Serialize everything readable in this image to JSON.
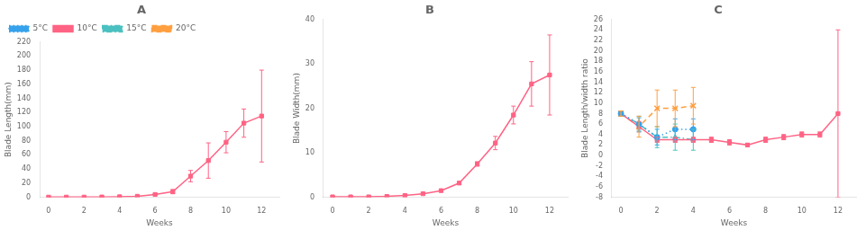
{
  "chart_data": [
    {
      "type": "line",
      "title": "A",
      "xlabel": "Weeks",
      "ylabel": "Blade Length(mm)",
      "x": [
        0,
        1,
        2,
        3,
        4,
        5,
        6,
        7,
        8,
        9,
        10,
        11,
        12
      ],
      "series": [
        {
          "name": "5°C",
          "color": "#36a2eb",
          "marker": "circle",
          "line_style": "dotted",
          "values": [
            null,
            null,
            null,
            null,
            null,
            null,
            null,
            null,
            null,
            null,
            null,
            null,
            null
          ]
        },
        {
          "name": "10°C",
          "color": "#ff6384",
          "marker": "square",
          "line_style": "solid",
          "values": [
            0.3,
            0.3,
            0.3,
            0.5,
            0.8,
            1.5,
            4.0,
            8.0,
            30.0,
            52.0,
            78.0,
            105.0,
            115.0
          ],
          "errors": [
            0.1,
            0.1,
            0.1,
            0.1,
            0.2,
            0.5,
            1.0,
            3.0,
            8.0,
            25.0,
            15.0,
            20.0,
            65.0
          ]
        },
        {
          "name": "15°C",
          "color": "#4bc0c0",
          "marker": "triangle",
          "line_style": "dashdot",
          "values": [
            null,
            null,
            null,
            null,
            null,
            null,
            null,
            null,
            null,
            null,
            null,
            null,
            null
          ]
        },
        {
          "name": "20°C",
          "color": "#ff9f40",
          "marker": "x",
          "line_style": "dashed",
          "values": [
            null,
            null,
            null,
            null,
            null,
            null,
            null,
            null,
            null,
            null,
            null,
            null,
            null
          ]
        }
      ],
      "xlim": [
        -0.5,
        13.0
      ],
      "xticks": [
        0,
        2,
        4,
        6,
        8,
        10,
        12
      ],
      "ylim": [
        0,
        220
      ],
      "yticks": [
        0,
        20,
        40,
        60,
        80,
        100,
        120,
        140,
        160,
        180,
        200,
        220
      ],
      "legend": "upper left",
      "grid": false
    },
    {
      "type": "line",
      "title": "B",
      "xlabel": "Weeks",
      "ylabel": "Blade Width(mm)",
      "x": [
        0,
        1,
        2,
        3,
        4,
        5,
        6,
        7,
        8,
        9,
        10,
        11,
        12
      ],
      "values": [
        0.1,
        0.1,
        0.1,
        0.2,
        0.4,
        0.8,
        1.5,
        3.2,
        7.5,
        12.2,
        18.5,
        25.5,
        27.5
      ],
      "errors": [
        0.0,
        0.0,
        0.0,
        0.0,
        0.0,
        0.1,
        0.2,
        0.3,
        0.5,
        1.5,
        2.0,
        5.0,
        9.0
      ],
      "color": "#ff6384",
      "marker": "square",
      "line_style": "solid",
      "xlim": [
        -0.5,
        13.0
      ],
      "xticks": [
        0,
        2,
        4,
        6,
        8,
        10,
        12
      ],
      "ylim": [
        0,
        40
      ],
      "yticks": [
        0,
        10,
        20,
        30,
        40
      ],
      "grid": false
    },
    {
      "type": "line",
      "title": "C",
      "xlabel": "Weeks",
      "ylabel": "Blade Length/width ratio",
      "x": [
        0,
        1,
        2,
        3,
        4,
        5,
        6,
        7,
        8,
        9,
        10,
        11,
        12
      ],
      "series": [
        {
          "color": "#36a2eb",
          "marker": "circle",
          "line_style": "dotted",
          "values": [
            8.0,
            6.0,
            3.5,
            5.0,
            5.0,
            null,
            null,
            null,
            null,
            null,
            null,
            null,
            null
          ],
          "errors": [
            0.5,
            1.2,
            1.5,
            2.0,
            2.0,
            null,
            null,
            null,
            null,
            null,
            null,
            null,
            null
          ]
        },
        {
          "color": "#ff6384",
          "marker": "square",
          "line_style": "solid",
          "values": [
            8.0,
            5.5,
            3.0,
            3.0,
            3.0,
            3.0,
            2.5,
            2.0,
            3.0,
            3.5,
            4.0,
            4.0,
            8.0
          ],
          "errors": [
            0.5,
            1.0,
            0.5,
            0.5,
            0.5,
            0.5,
            0.5,
            0.3,
            0.5,
            0.5,
            0.5,
            0.5,
            16.0
          ]
        },
        {
          "color": "#4bc0c0",
          "marker": "triangle",
          "line_style": "dashdot",
          "values": [
            8.0,
            6.0,
            3.5,
            3.5,
            3.0,
            null,
            null,
            null,
            null,
            null,
            null,
            null,
            null
          ],
          "errors": [
            0.5,
            1.5,
            2.0,
            2.5,
            2.0,
            null,
            null,
            null,
            null,
            null,
            null,
            null,
            null
          ]
        },
        {
          "color": "#ff9f40",
          "marker": "x",
          "line_style": "dashed",
          "values": [
            8.0,
            5.5,
            9.0,
            9.0,
            9.5,
            null,
            null,
            null,
            null,
            null,
            null,
            null,
            null
          ],
          "errors": [
            0.5,
            2.0,
            3.5,
            3.5,
            3.5,
            null,
            null,
            null,
            null,
            null,
            null,
            null,
            null
          ]
        }
      ],
      "xlim": [
        -0.5,
        13.0
      ],
      "xticks": [
        0,
        2,
        4,
        6,
        8,
        10,
        12
      ],
      "ylim": [
        -8,
        26
      ],
      "yticks": [
        -8,
        -6,
        -4,
        -2,
        0,
        2,
        4,
        6,
        8,
        10,
        12,
        14,
        16,
        18,
        20,
        22,
        24,
        26
      ],
      "grid": false
    }
  ]
}
